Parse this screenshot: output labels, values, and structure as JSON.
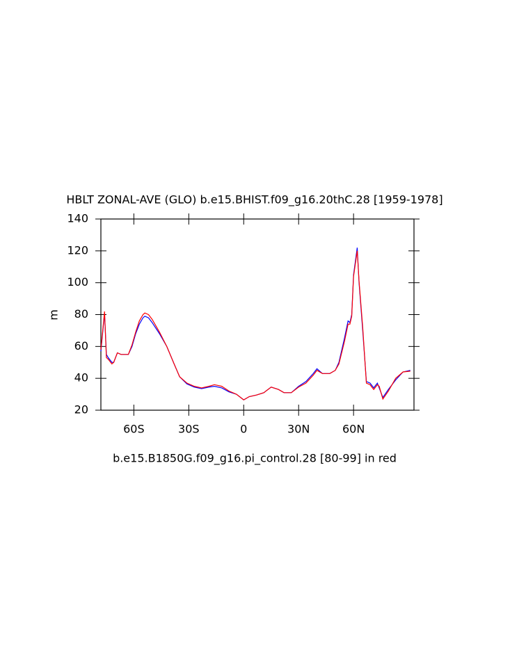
{
  "chart_data": {
    "type": "line",
    "title": "HBLT ZONAL-AVE (GLO) b.e15.BHIST.f09_g16.20thC.28 [1959-1978]",
    "subtitle": "b.e15.B1850G.f09_g16.pi_control.28 [80-99] in red",
    "y_label": "m",
    "x": [
      -78,
      -76,
      -75,
      -74,
      -72,
      -71,
      -69,
      -67,
      -65,
      -63,
      -61,
      -59,
      -57,
      -55,
      -54,
      -52,
      -50,
      -46,
      -42,
      -38,
      -35,
      -31,
      -27,
      -23,
      -19,
      -16,
      -12,
      -8,
      -4,
      0,
      3,
      7,
      11,
      15,
      19,
      22,
      26,
      30,
      34,
      38,
      40,
      43,
      47,
      50,
      52,
      55,
      57,
      58,
      59,
      60,
      62,
      63,
      65,
      67,
      69,
      71,
      73,
      74,
      76,
      79,
      83,
      87,
      91
    ],
    "series": [
      {
        "color": "#0000ff",
        "values": [
          57,
          81,
          55,
          53,
          50,
          50,
          56,
          55,
          55,
          55,
          60,
          68,
          74,
          78,
          79,
          78,
          75,
          68,
          60,
          49,
          41,
          36.5,
          34.5,
          33.5,
          34.5,
          35,
          34,
          31.5,
          30,
          26.5,
          28.5,
          29.5,
          31,
          34.5,
          33,
          31,
          31,
          35,
          38,
          43,
          46,
          43,
          43,
          45,
          50,
          65,
          76,
          75,
          80,
          105,
          122,
          100,
          70,
          38,
          37,
          34,
          37,
          34,
          28,
          33,
          39,
          44,
          45
        ]
      },
      {
        "color": "#ff0000",
        "values": [
          58,
          82,
          53,
          52,
          49,
          50,
          56,
          55,
          55,
          55,
          61,
          69,
          76,
          80,
          81,
          80,
          77,
          69,
          60,
          49,
          41,
          37,
          35,
          34,
          35,
          36,
          35,
          32,
          30,
          26.5,
          28.5,
          29.5,
          31,
          34.5,
          33,
          31,
          31,
          34.5,
          37,
          42,
          45,
          43,
          43,
          45,
          49,
          63,
          74,
          74,
          79,
          104,
          120,
          101,
          72,
          37,
          36,
          33,
          36,
          35,
          27,
          32,
          40,
          44,
          44.5
        ]
      }
    ],
    "xlim": [
      -78,
      93
    ],
    "ylim": [
      20,
      140
    ],
    "xticks": [
      {
        "value": -60,
        "label": "60S"
      },
      {
        "value": -30,
        "label": "30S"
      },
      0,
      {
        "value": 30,
        "label": "30N"
      },
      {
        "value": 60,
        "label": "60N"
      }
    ],
    "yticks": [
      20,
      40,
      60,
      80,
      100,
      120,
      140
    ]
  }
}
